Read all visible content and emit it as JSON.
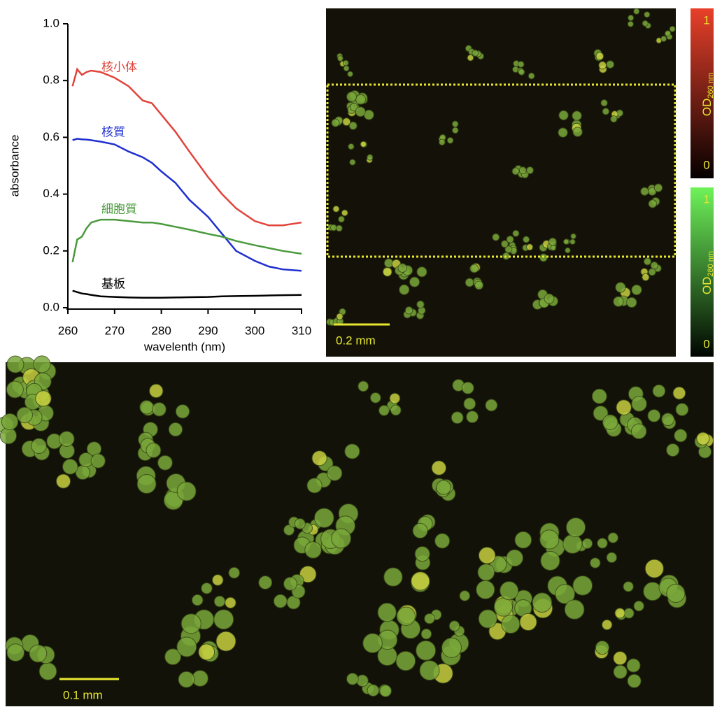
{
  "chart_data": {
    "type": "line",
    "y_label": "absorbance",
    "x_label": "wavelenth (nm)",
    "x": [
      261,
      262,
      263,
      264,
      265,
      267,
      270,
      273,
      276,
      278,
      280,
      283,
      286,
      290,
      293,
      296,
      300,
      303,
      306,
      310
    ],
    "xlim": [
      260,
      310
    ],
    "xticks": [
      260,
      270,
      280,
      290,
      300,
      310
    ],
    "ylim": [
      0,
      1
    ],
    "yticks": [
      {
        "value": 0,
        "label": "0.0"
      },
      0.2,
      0.4,
      0.6,
      0.8,
      {
        "value": 1,
        "label": "1.0"
      }
    ],
    "series": [
      {
        "name": "核小体",
        "color": "#e0443c",
        "values": [
          0.78,
          0.84,
          0.82,
          0.83,
          0.835,
          0.83,
          0.81,
          0.78,
          0.73,
          0.72,
          0.68,
          0.62,
          0.55,
          0.46,
          0.4,
          0.35,
          0.305,
          0.29,
          0.29,
          0.3
        ]
      },
      {
        "name": "核質",
        "color": "#1f2fd0",
        "values": [
          0.59,
          0.595,
          0.593,
          0.592,
          0.59,
          0.585,
          0.575,
          0.55,
          0.53,
          0.51,
          0.48,
          0.44,
          0.38,
          0.32,
          0.26,
          0.2,
          0.165,
          0.145,
          0.135,
          0.13
        ]
      },
      {
        "name": "細胞質",
        "color": "#4a9a3c",
        "values": [
          0.16,
          0.24,
          0.25,
          0.28,
          0.3,
          0.31,
          0.31,
          0.305,
          0.3,
          0.3,
          0.295,
          0.285,
          0.275,
          0.26,
          0.25,
          0.235,
          0.22,
          0.21,
          0.2,
          0.19
        ]
      },
      {
        "name": "基板",
        "color": "#000000",
        "values": [
          0.06,
          0.055,
          0.05,
          0.048,
          0.045,
          0.04,
          0.038,
          0.036,
          0.035,
          0.035,
          0.035,
          0.036,
          0.037,
          0.038,
          0.04,
          0.041,
          0.042,
          0.043,
          0.044,
          0.045
        ]
      }
    ]
  },
  "images": {
    "top_scale_bar": "0.2 mm",
    "bottom_scale_bar": "0.1 mm",
    "colorbar_260": {
      "max": "1",
      "min": "0",
      "label": "OD",
      "sub": "260 nm"
    },
    "colorbar_280": {
      "max": "1",
      "min": "0",
      "label": "OD",
      "sub": "280 nm"
    }
  }
}
